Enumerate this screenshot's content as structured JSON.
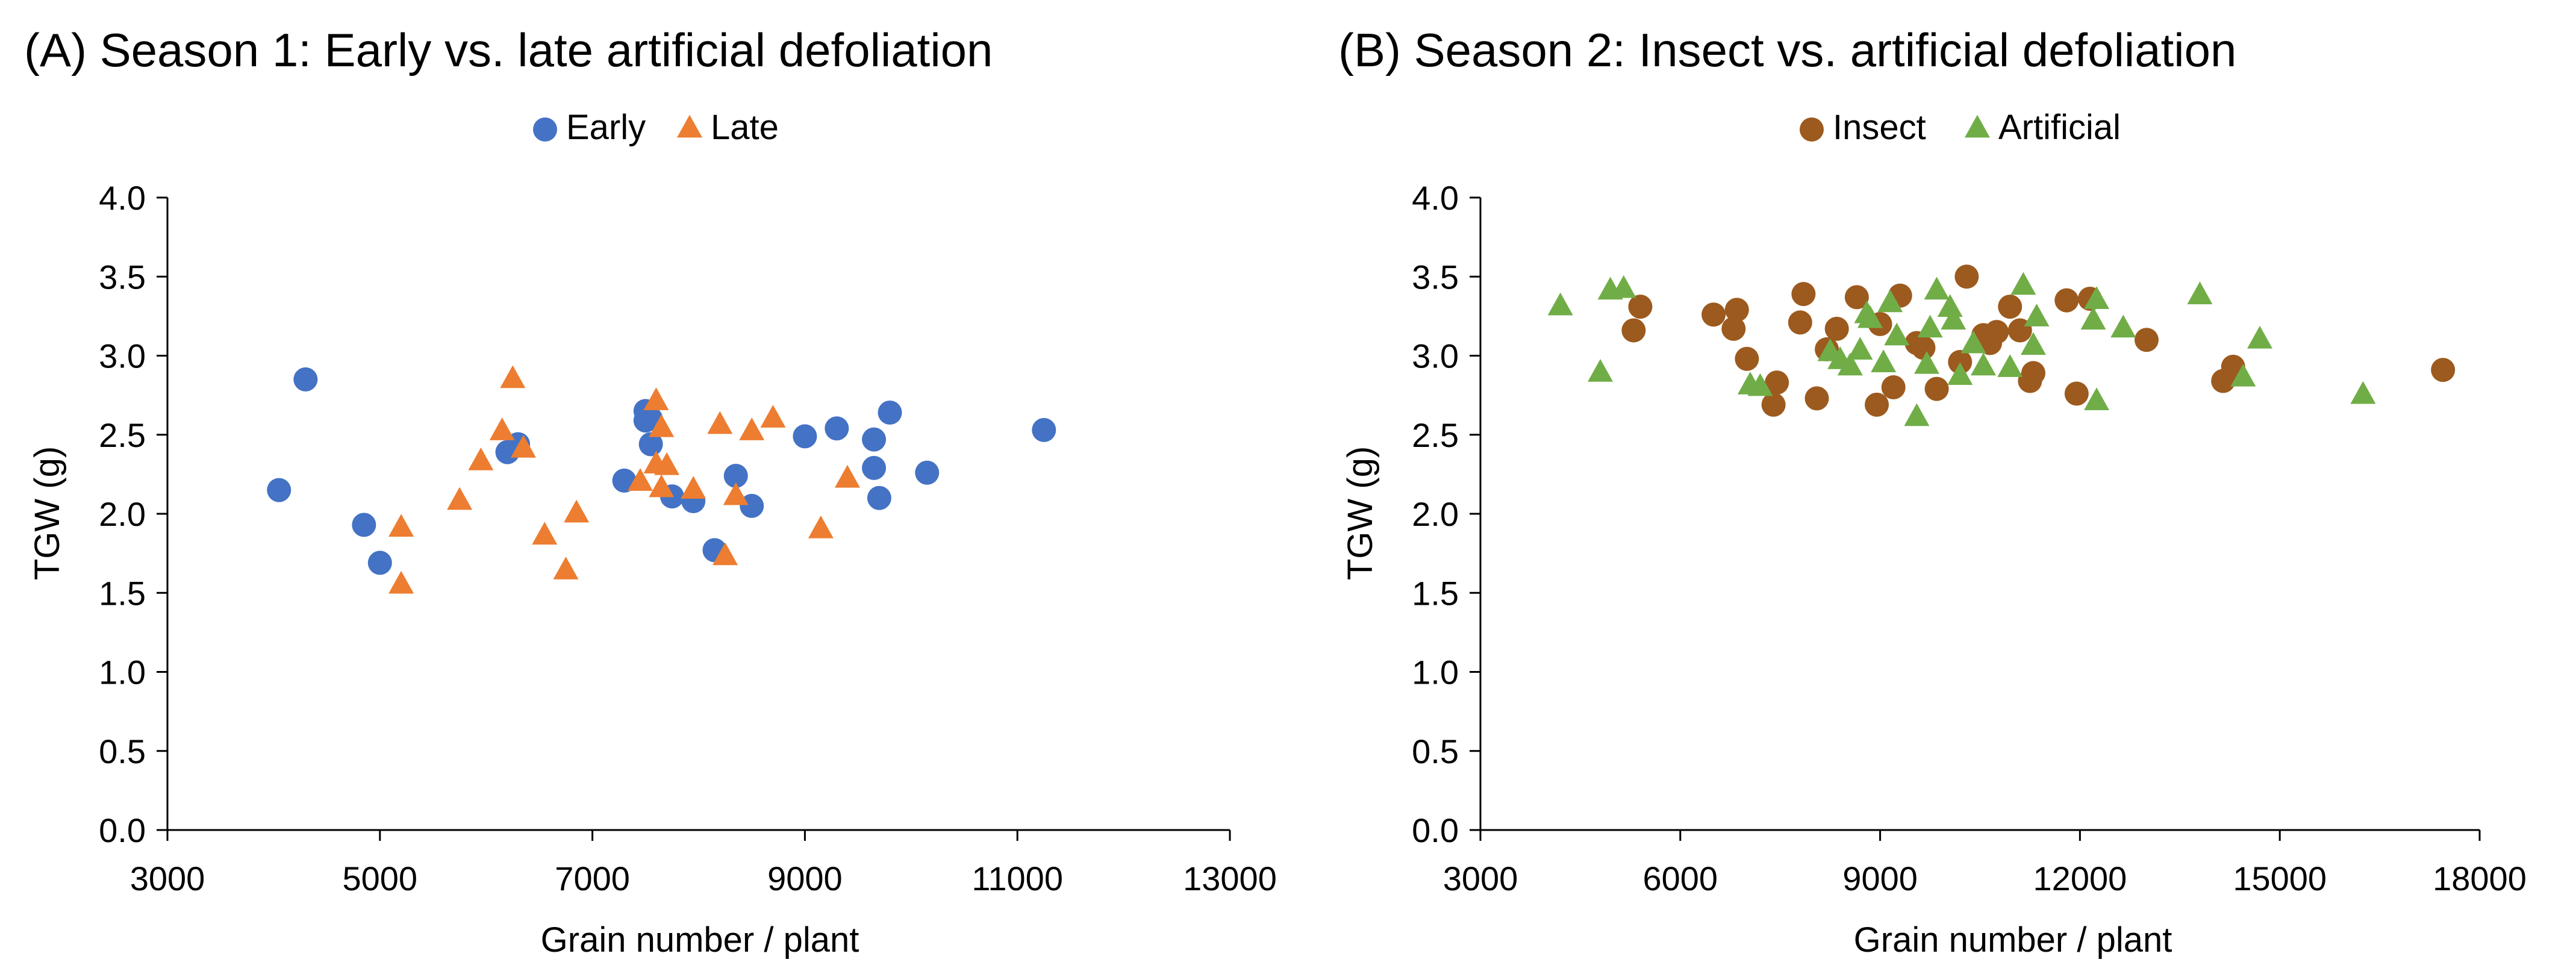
{
  "chart_data": [
    {
      "type": "scatter",
      "title": "(A) Season 1: Early vs. late artificial defoliation",
      "xlabel": "Grain number / plant",
      "ylabel": "TGW (g)",
      "xlim": [
        3000,
        13000
      ],
      "ylim": [
        0.0,
        4.0
      ],
      "xticks": [
        3000,
        5000,
        7000,
        9000,
        11000,
        13000
      ],
      "yticks": [
        0.0,
        0.5,
        1.0,
        1.5,
        2.0,
        2.5,
        3.0,
        3.5,
        4.0
      ],
      "xtick_labels": [
        "3000",
        "5000",
        "7000",
        "9000",
        "11000",
        "13000"
      ],
      "ytick_labels": [
        "0.0",
        "0.5",
        "1.0",
        "1.5",
        "2.0",
        "2.5",
        "3.0",
        "3.5",
        "4.0"
      ],
      "grid": false,
      "legend_position": "top-center",
      "series": [
        {
          "name": "Early",
          "marker": "circle",
          "color": "#4472C4",
          "x": [
            4050,
            4300,
            4850,
            5000,
            6200,
            6300,
            7300,
            7500,
            7500,
            7550,
            7550,
            7750,
            7950,
            8150,
            8350,
            8500,
            9000,
            9300,
            9650,
            9650,
            9700,
            9800,
            10150,
            11250
          ],
          "y": [
            2.15,
            2.85,
            1.93,
            1.69,
            2.39,
            2.44,
            2.21,
            2.65,
            2.59,
            2.44,
            2.6,
            2.11,
            2.08,
            1.77,
            2.24,
            2.05,
            2.49,
            2.54,
            2.29,
            2.47,
            2.1,
            2.64,
            2.26,
            2.53
          ]
        },
        {
          "name": "Late",
          "marker": "triangle",
          "color": "#ED7D31",
          "x": [
            5200,
            5200,
            5750,
            5950,
            6150,
            6250,
            6350,
            6550,
            6750,
            6850,
            7450,
            7600,
            7600,
            7650,
            7650,
            7700,
            7950,
            8200,
            8250,
            8350,
            8500,
            8700,
            9150,
            9400
          ],
          "y": [
            1.91,
            1.55,
            2.08,
            2.33,
            2.52,
            2.85,
            2.41,
            1.86,
            1.64,
            2.0,
            2.2,
            2.31,
            2.71,
            2.54,
            2.16,
            2.3,
            2.15,
            2.56,
            1.73,
            2.11,
            2.52,
            2.6,
            1.9,
            2.22
          ]
        }
      ]
    },
    {
      "type": "scatter",
      "title": "(B) Season 2: Insect vs. artificial defoliation",
      "xlabel": "Grain number / plant",
      "ylabel": "TGW (g)",
      "xlim": [
        3000,
        18000
      ],
      "ylim": [
        0.0,
        4.0
      ],
      "xticks": [
        3000,
        6000,
        9000,
        12000,
        15000,
        18000
      ],
      "yticks": [
        0.0,
        0.5,
        1.0,
        1.5,
        2.0,
        2.5,
        3.0,
        3.5,
        4.0
      ],
      "xtick_labels": [
        "3000",
        "6000",
        "9000",
        "12000",
        "15000",
        "18000"
      ],
      "ytick_labels": [
        "0.0",
        "0.5",
        "1.0",
        "1.5",
        "2.0",
        "2.5",
        "3.0",
        "3.5",
        "4.0"
      ],
      "grid": false,
      "legend_position": "top-center",
      "series": [
        {
          "name": "Insect",
          "marker": "circle",
          "color": "#9C5A1E",
          "x": [
            5300,
            5400,
            6500,
            6800,
            6850,
            7000,
            7400,
            7450,
            7800,
            7850,
            8050,
            8200,
            8350,
            8650,
            8950,
            9000,
            9200,
            9300,
            9550,
            9650,
            9850,
            10200,
            10300,
            10550,
            10650,
            10750,
            10950,
            11100,
            11250,
            11300,
            11800,
            11950,
            12150,
            13000,
            14150,
            14300,
            17450
          ],
          "y": [
            3.16,
            3.31,
            3.26,
            3.17,
            3.29,
            2.98,
            2.69,
            2.83,
            3.21,
            3.39,
            2.73,
            3.04,
            3.17,
            3.37,
            2.69,
            3.2,
            2.8,
            3.38,
            3.08,
            3.05,
            2.79,
            2.96,
            3.5,
            3.13,
            3.08,
            3.15,
            3.31,
            3.16,
            2.84,
            2.89,
            3.35,
            2.76,
            3.36,
            3.1,
            2.84,
            2.93,
            2.91
          ]
        },
        {
          "name": "Artificial",
          "marker": "triangle",
          "color": "#70AD47",
          "x": [
            4200,
            4800,
            4950,
            5150,
            7050,
            7200,
            8250,
            8400,
            8550,
            8700,
            8800,
            8850,
            9050,
            9150,
            9250,
            9550,
            9700,
            9750,
            9850,
            10050,
            10100,
            10200,
            10400,
            10550,
            10950,
            11150,
            11300,
            11350,
            12200,
            12250,
            12250,
            12650,
            13800,
            14450,
            14700,
            16250
          ],
          "y": [
            3.31,
            2.89,
            3.41,
            3.42,
            2.81,
            2.8,
            3.02,
            2.97,
            2.93,
            3.03,
            3.26,
            3.23,
            2.95,
            3.33,
            3.12,
            2.61,
            2.94,
            3.17,
            3.41,
            3.3,
            3.22,
            2.87,
            3.07,
            2.93,
            2.92,
            3.44,
            3.06,
            3.24,
            3.22,
            3.35,
            2.71,
            3.17,
            3.38,
            2.86,
            3.1,
            2.75
          ]
        }
      ]
    }
  ]
}
